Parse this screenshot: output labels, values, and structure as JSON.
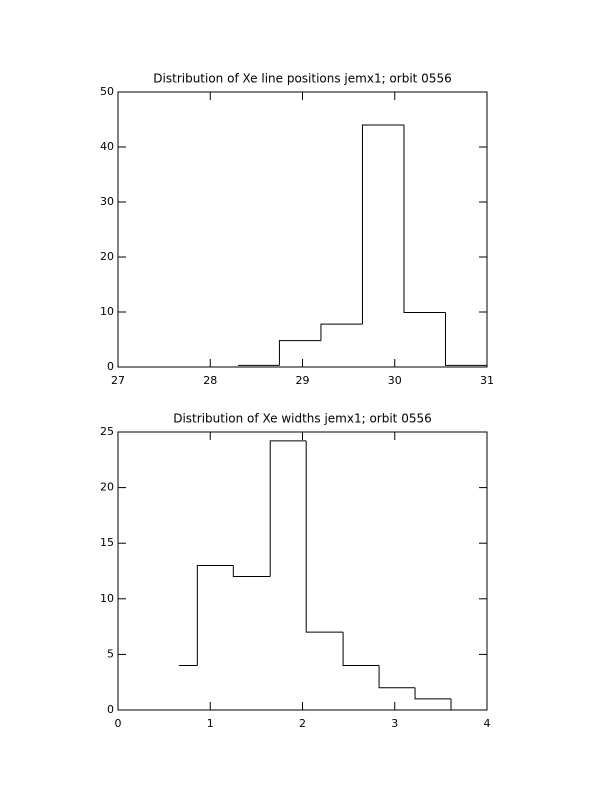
{
  "chart_data": [
    {
      "type": "histogram",
      "title": "Distribution of Xe line positions jemx1; orbit 0556",
      "bins": [
        28.3,
        28.75,
        29.2,
        29.65,
        30.1,
        30.55,
        31.0
      ],
      "values": [
        0.3,
        4.8,
        7.8,
        44,
        9.9,
        0.3
      ],
      "color": "#000000",
      "xlim": [
        27,
        31
      ],
      "xticks": [
        27,
        28,
        29,
        30,
        31
      ],
      "ylim": [
        0,
        50
      ],
      "yticks": [
        0,
        10,
        20,
        30,
        40,
        50
      ]
    },
    {
      "type": "histogram",
      "title": "Distribution of Xe widths jemx1; orbit 0556",
      "bins": [
        0.66,
        0.86,
        1.25,
        1.65,
        2.04,
        2.44,
        2.83,
        3.22,
        3.61,
        4.0
      ],
      "values": [
        4,
        13,
        12,
        24.2,
        7,
        4,
        2,
        1,
        0
      ],
      "color": "#000000",
      "xlim": [
        0,
        4
      ],
      "xticks": [
        0,
        1,
        2,
        3,
        4
      ],
      "ylim": [
        0,
        25
      ],
      "yticks": [
        0,
        5,
        10,
        15,
        20,
        25
      ]
    }
  ]
}
